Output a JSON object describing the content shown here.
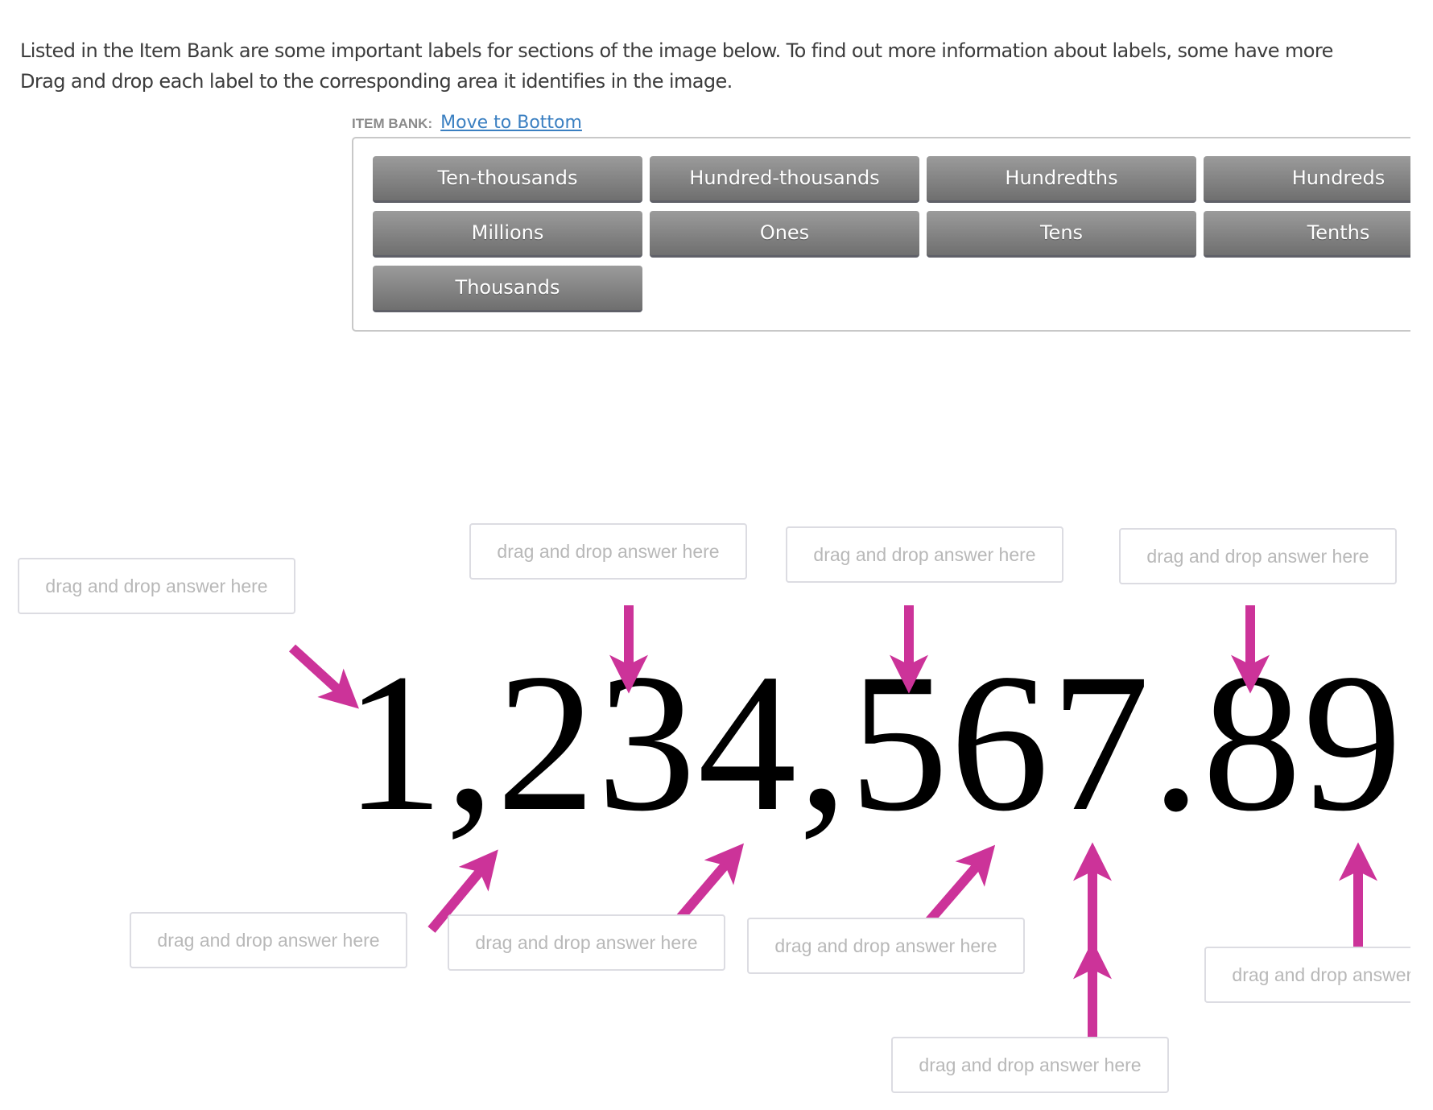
{
  "instructions": {
    "line1": "Listed in the Item Bank are some important labels for sections of the image below. To find out more information about labels, some have more",
    "line2": "Drag and drop each label to the corresponding area it identifies in the image."
  },
  "item_bank": {
    "label": "ITEM BANK:",
    "move_link": "Move to Bottom",
    "items": [
      "Ten-thousands",
      "Hundred-thousands",
      "Hundredths",
      "Hundreds",
      "Millions",
      "Ones",
      "Tens",
      "Tenths",
      "Thousands"
    ]
  },
  "image": {
    "number": "1,234,567.89",
    "arrow_color": "#cc3399"
  },
  "drop_zones": {
    "placeholder": "drag and drop answer here",
    "count": 9
  }
}
